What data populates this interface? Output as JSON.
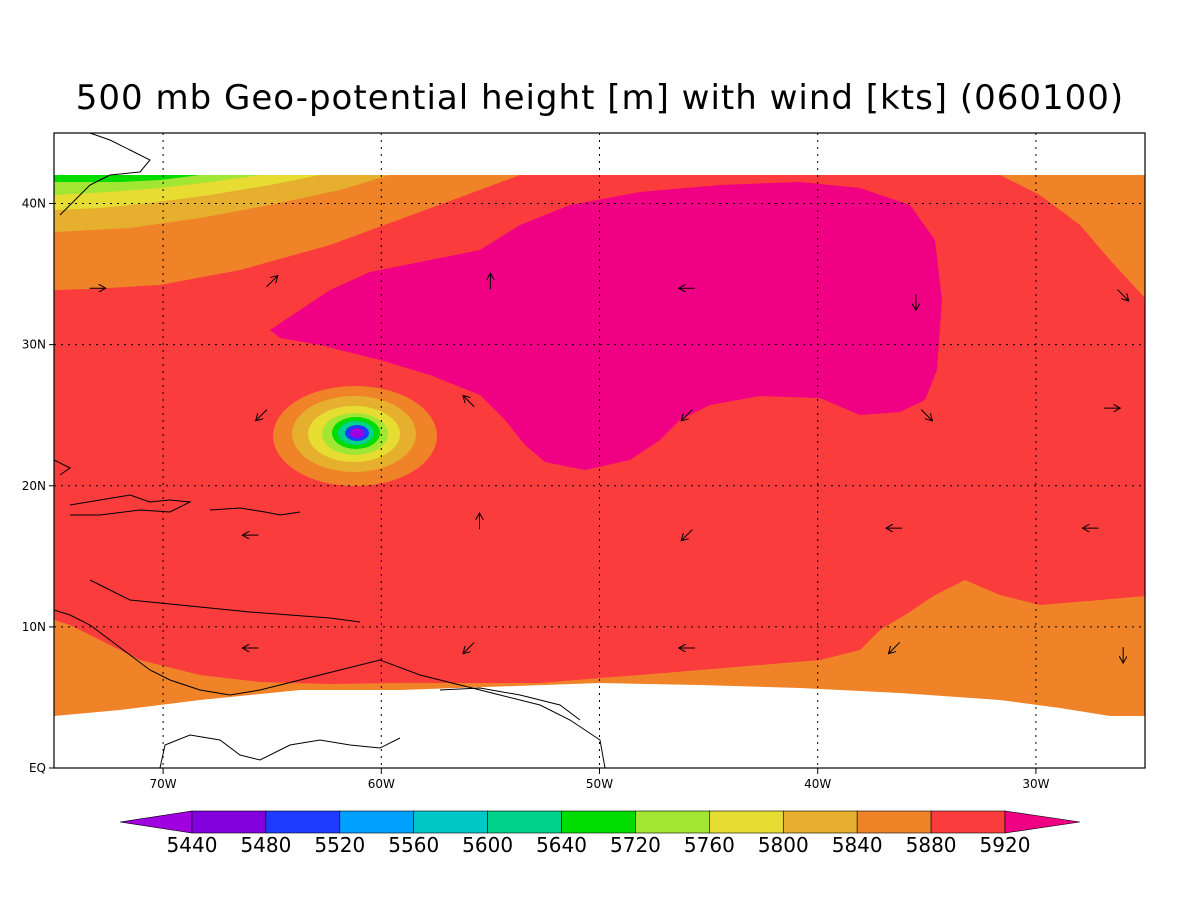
{
  "title": "500 mb Geo-potential height [m] with wind [kts] (060100)",
  "map": {
    "lon_range": [
      -75,
      -25
    ],
    "lat_range": [
      0,
      45
    ],
    "x_ticks": [
      {
        "lon": -70,
        "label": "70W"
      },
      {
        "lon": -60,
        "label": "60W"
      },
      {
        "lon": -50,
        "label": "50W"
      },
      {
        "lon": -40,
        "label": "40W"
      },
      {
        "lon": -30,
        "label": "30W"
      }
    ],
    "y_ticks": [
      {
        "lat": 0,
        "label": "EQ"
      },
      {
        "lat": 10,
        "label": "10N"
      },
      {
        "lat": 20,
        "label": "20N"
      },
      {
        "lat": 30,
        "label": "30N"
      },
      {
        "lat": 40,
        "label": "40N"
      }
    ]
  },
  "colorbar": {
    "levels": [
      "5440",
      "5480",
      "5520",
      "5560",
      "5600",
      "5640",
      "5720",
      "5760",
      "5800",
      "5840",
      "5880",
      "5920"
    ],
    "colors": [
      "#a000e0",
      "#8200dc",
      "#1e3cff",
      "#00a0ff",
      "#00c8c8",
      "#00d28c",
      "#00dc00",
      "#a0e632",
      "#e6dc32",
      "#e6af2d",
      "#f08228",
      "#fa3c3c",
      "#f00082"
    ]
  },
  "colors": {
    "orange": "#f08228",
    "red": "#fa3c3c",
    "magenta": "#f00082",
    "gold": "#e6af2d",
    "yellow": "#e6dc32",
    "lightgreen": "#a0e632",
    "green": "#00dc00",
    "teal": "#00d28c",
    "cyan": "#00c8c8",
    "blue": "#1e3cff",
    "violet": "#a000e0"
  },
  "wind_vectors": [
    {
      "lon": -55,
      "lat": 34.5,
      "dir": "N"
    },
    {
      "lon": -46,
      "lat": 34,
      "dir": "W"
    },
    {
      "lon": -35.5,
      "lat": 33,
      "dir": "S"
    },
    {
      "lon": -73,
      "lat": 34,
      "dir": "E"
    },
    {
      "lon": -65,
      "lat": 34.5,
      "dir": "NE"
    },
    {
      "lon": -65.5,
      "lat": 25,
      "dir": "SW"
    },
    {
      "lon": -56,
      "lat": 26,
      "dir": "NW"
    },
    {
      "lon": -46,
      "lat": 25,
      "dir": "SW"
    },
    {
      "lon": -35,
      "lat": 25,
      "dir": "SE"
    },
    {
      "lon": -26.5,
      "lat": 25.5,
      "dir": "E"
    },
    {
      "lon": -55.5,
      "lat": 17.5,
      "dir": "N"
    },
    {
      "lon": -66,
      "lat": 16.5,
      "dir": "W"
    },
    {
      "lon": -46,
      "lat": 16.5,
      "dir": "SW"
    },
    {
      "lon": -36.5,
      "lat": 17,
      "dir": "W"
    },
    {
      "lon": -27.5,
      "lat": 17,
      "dir": "W"
    },
    {
      "lon": -66,
      "lat": 8.5,
      "dir": "W"
    },
    {
      "lon": -56,
      "lat": 8.5,
      "dir": "SW"
    },
    {
      "lon": -46,
      "lat": 8.5,
      "dir": "W"
    },
    {
      "lon": -36.5,
      "lat": 8.5,
      "dir": "SW"
    },
    {
      "lon": -26,
      "lat": 8,
      "dir": "S"
    },
    {
      "lon": -26,
      "lat": 33.5,
      "dir": "SE"
    }
  ]
}
